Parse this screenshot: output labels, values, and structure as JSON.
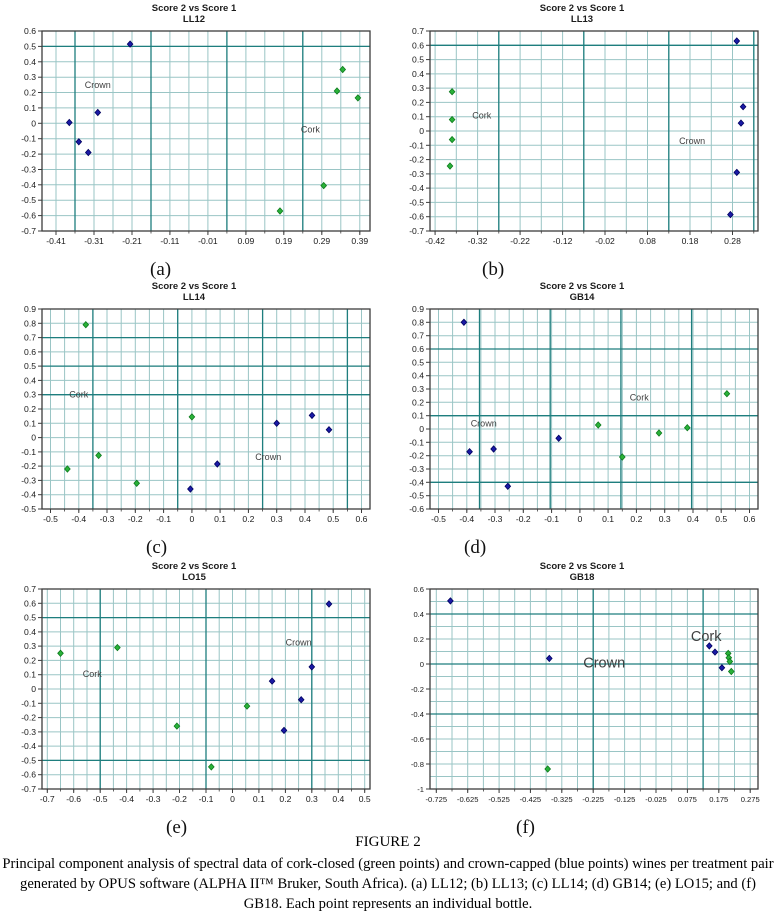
{
  "figure": {
    "label": "FIGURE 2",
    "caption": "Principal component analysis of spectral data of cork-closed (green points) and crown-capped (blue points) wines per treatment pair generated by OPUS software (ALPHA II™ Bruker, South Africa). (a) LL12; (b) LL13; (c) LL14; (d) GB14; (e) LO15; and (f) GB18. Each point represents an individual bottle.",
    "colors": {
      "cork_green": "#2ab239",
      "cork_edge": "#0e7a1e",
      "crown_blue": "#1a1aa6",
      "crown_edge": "#00005e",
      "grid_minor": "#9ac5c5",
      "grid_major": "#1e7e7e",
      "axis": "#3c3c3c",
      "tick_text": "#1a1a1a",
      "annotation": "#3f3f3f"
    }
  },
  "chart_data": [
    {
      "type": "scatter",
      "panel_label": "(a)",
      "title": "Score 2 vs Score 1",
      "subtitle": "LL12",
      "x_ticks": [
        "-0.41",
        "-0.31",
        "-0.21",
        "-0.11",
        "-0.01",
        "0.09",
        "0.19",
        "0.29",
        "0.39"
      ],
      "y_ticks": [
        "0.6",
        "0.5",
        "0.4",
        "0.3",
        "0.2",
        "0.1",
        "0",
        "-0.1",
        "-0.2",
        "-0.3",
        "-0.4",
        "-0.5",
        "-0.6",
        "-0.7"
      ],
      "xlim": [
        -0.447,
        0.417
      ],
      "ylim": [
        -0.7,
        0.6
      ],
      "grid": {
        "minor_x": 0.05,
        "minor_y": 0.1,
        "major_x": [
          -0.36,
          -0.16,
          0.04,
          0.24
        ],
        "major_y": [
          0.5
        ]
      },
      "series": [
        {
          "name": "Crown",
          "points": [
            [
              -0.375,
              0.005
            ],
            [
              -0.35,
              -0.12
            ],
            [
              -0.325,
              -0.19
            ],
            [
              -0.3,
              0.07
            ],
            [
              -0.215,
              0.515
            ]
          ]
        },
        {
          "name": "Cork",
          "points": [
            [
              0.18,
              -0.57
            ],
            [
              0.295,
              -0.405
            ],
            [
              0.33,
              0.21
            ],
            [
              0.345,
              0.35
            ],
            [
              0.385,
              0.165
            ]
          ]
        }
      ],
      "annotations": [
        {
          "text": "Crown",
          "x": -0.3,
          "y": 0.25,
          "size": "small"
        },
        {
          "text": "Cork",
          "x": 0.26,
          "y": -0.04,
          "size": "small"
        }
      ]
    },
    {
      "type": "scatter",
      "panel_label": "(b)",
      "title": "Score 2 vs Score 1",
      "subtitle": "LL13",
      "x_ticks": [
        "-0.42",
        "-0.32",
        "-0.22",
        "-0.12",
        "-0.02",
        "0.08",
        "0.18",
        "0.28"
      ],
      "y_ticks": [
        "0.7",
        "0.6",
        "0.5",
        "0.4",
        "0.3",
        "0.2",
        "0.1",
        "0",
        "-0.1",
        "-0.2",
        "-0.3",
        "-0.4",
        "-0.5",
        "-0.6",
        "-0.7"
      ],
      "xlim": [
        -0.432,
        0.34
      ],
      "ylim": [
        -0.7,
        0.7
      ],
      "grid": {
        "minor_x": 0.05,
        "minor_y": 0.1,
        "major_x": [
          -0.27,
          -0.07,
          0.13,
          0.33
        ],
        "major_y": [
          0.6
        ]
      },
      "series": [
        {
          "name": "Cork",
          "points": [
            [
              -0.38,
              0.275
            ],
            [
              -0.38,
              0.08
            ],
            [
              -0.38,
              -0.06
            ],
            [
              -0.385,
              -0.245
            ]
          ]
        },
        {
          "name": "Crown",
          "points": [
            [
              0.29,
              0.63
            ],
            [
              0.305,
              0.17
            ],
            [
              0.3,
              0.055
            ],
            [
              0.29,
              -0.29
            ],
            [
              0.275,
              -0.585
            ]
          ]
        }
      ],
      "annotations": [
        {
          "text": "Cork",
          "x": -0.31,
          "y": 0.11,
          "size": "small"
        },
        {
          "text": "Crown",
          "x": 0.185,
          "y": -0.07,
          "size": "small"
        }
      ]
    },
    {
      "type": "scatter",
      "panel_label": "(c)",
      "title": "Score 2 vs Score 1",
      "subtitle": "LL14",
      "x_ticks": [
        "-0.5",
        "-0.4",
        "-0.3",
        "-0.2",
        "-0.1",
        "0",
        "0.1",
        "0.2",
        "0.3",
        "0.4",
        "0.5",
        "0.6"
      ],
      "y_ticks": [
        "0.9",
        "0.8",
        "0.7",
        "0.6",
        "0.5",
        "0.4",
        "0.3",
        "0.2",
        "0.1",
        "0",
        "-0.1",
        "-0.2",
        "-0.3",
        "-0.4",
        "-0.5"
      ],
      "xlim": [
        -0.53,
        0.63
      ],
      "ylim": [
        -0.5,
        0.9
      ],
      "grid": {
        "minor_x": 0.05,
        "minor_y": 0.1,
        "major_x": [
          -0.35,
          -0.05,
          0.25,
          0.55
        ],
        "major_y": [
          0.7,
          0.5,
          0.3
        ]
      },
      "series": [
        {
          "name": "Cork",
          "points": [
            [
              -0.44,
              -0.22
            ],
            [
              -0.375,
              0.79
            ],
            [
              -0.33,
              -0.125
            ],
            [
              -0.195,
              -0.32
            ],
            [
              0.0,
              0.145
            ]
          ]
        },
        {
          "name": "Crown",
          "points": [
            [
              -0.005,
              -0.36
            ],
            [
              0.09,
              -0.185
            ],
            [
              0.3,
              0.1
            ],
            [
              0.425,
              0.155
            ],
            [
              0.485,
              0.055
            ]
          ]
        }
      ],
      "annotations": [
        {
          "text": "Cork",
          "x": -0.4,
          "y": 0.3,
          "size": "small"
        },
        {
          "text": "Crown",
          "x": 0.27,
          "y": -0.135,
          "size": "small"
        }
      ]
    },
    {
      "type": "scatter",
      "panel_label": "(d)",
      "title": "Score 2 vs Score 1",
      "subtitle": "GB14",
      "x_ticks": [
        "-0.5",
        "-0.4",
        "-0.3",
        "-0.2",
        "-0.1",
        "0",
        "0.1",
        "0.2",
        "0.3",
        "0.4",
        "0.5",
        "0.6"
      ],
      "y_ticks": [
        "0.9",
        "0.8",
        "0.7",
        "0.6",
        "0.5",
        "0.4",
        "0.3",
        "0.2",
        "0.1",
        "0",
        "-0.1",
        "-0.2",
        "-0.3",
        "-0.4",
        "-0.5",
        "-0.6"
      ],
      "xlim": [
        -0.53,
        0.63
      ],
      "ylim": [
        -0.6,
        0.9
      ],
      "grid": {
        "minor_x": 0.05,
        "minor_y": 0.1,
        "major_x": [
          -0.355,
          -0.105,
          0.145,
          0.395
        ],
        "major_y": [
          0.6,
          0.1,
          -0.4
        ]
      },
      "series": [
        {
          "name": "Crown",
          "points": [
            [
              -0.41,
              0.8
            ],
            [
              -0.39,
              -0.17
            ],
            [
              -0.305,
              -0.15
            ],
            [
              -0.255,
              -0.43
            ],
            [
              -0.075,
              -0.07
            ]
          ]
        },
        {
          "name": "Cork",
          "points": [
            [
              0.065,
              0.03
            ],
            [
              0.15,
              -0.21
            ],
            [
              0.28,
              -0.03
            ],
            [
              0.38,
              0.01
            ],
            [
              0.52,
              0.265
            ]
          ]
        }
      ],
      "annotations": [
        {
          "text": "Crown",
          "x": -0.34,
          "y": 0.04,
          "size": "small"
        },
        {
          "text": "Cork",
          "x": 0.21,
          "y": 0.235,
          "size": "small"
        }
      ]
    },
    {
      "type": "scatter",
      "panel_label": "(e)",
      "title": "Score 2 vs Score 1",
      "subtitle": "LO15",
      "x_ticks": [
        "-0.7",
        "-0.6",
        "-0.5",
        "-0.4",
        "-0.3",
        "-0.2",
        "-0.1",
        "0",
        "0.1",
        "0.2",
        "0.3",
        "0.4",
        "0.5"
      ],
      "y_ticks": [
        "0.7",
        "0.6",
        "0.5",
        "0.4",
        "0.3",
        "0.2",
        "0.1",
        "0",
        "-0.1",
        "-0.2",
        "-0.3",
        "-0.4",
        "-0.5",
        "-0.6",
        "-0.7"
      ],
      "xlim": [
        -0.72,
        0.52
      ],
      "ylim": [
        -0.7,
        0.7
      ],
      "grid": {
        "minor_x": 0.05,
        "minor_y": 0.1,
        "major_x": [
          -0.5,
          -0.1,
          0.3
        ],
        "major_y": [
          0.5,
          -0.5
        ]
      },
      "series": [
        {
          "name": "Cork",
          "points": [
            [
              -0.65,
              0.25
            ],
            [
              -0.435,
              0.29
            ],
            [
              -0.21,
              -0.26
            ],
            [
              -0.08,
              -0.545
            ],
            [
              0.055,
              -0.12
            ]
          ]
        },
        {
          "name": "Crown",
          "points": [
            [
              0.15,
              0.055
            ],
            [
              0.195,
              -0.29
            ],
            [
              0.26,
              -0.075
            ],
            [
              0.3,
              0.155
            ],
            [
              0.365,
              0.595
            ]
          ]
        }
      ],
      "annotations": [
        {
          "text": "Cork",
          "x": -0.53,
          "y": 0.105,
          "size": "small"
        },
        {
          "text": "Crown",
          "x": 0.25,
          "y": 0.325,
          "size": "small"
        }
      ]
    },
    {
      "type": "scatter",
      "panel_label": "(f)",
      "title": "Score 2 vs Score 1",
      "subtitle": "GB18",
      "x_ticks": [
        "-0.725",
        "-0.625",
        "-0.525",
        "-0.425",
        "-0.325",
        "-0.225",
        "-0.125",
        "-0.025",
        "0.075",
        "0.175",
        "0.275"
      ],
      "y_ticks": [
        "0.6",
        "0.4",
        "0.2",
        "0",
        "-0.2",
        "-0.4",
        "-0.6",
        "-0.8",
        "-1"
      ],
      "xlim": [
        -0.745,
        0.3
      ],
      "ylim": [
        -1.0,
        0.6
      ],
      "grid": {
        "minor_x": 0.05,
        "minor_y": 0.1,
        "major_x": [
          -0.225,
          0.125
        ],
        "major_y": [
          0.4,
          0.0,
          -0.4
        ]
      },
      "series": [
        {
          "name": "Crown",
          "points": [
            [
              -0.68,
              0.505
            ],
            [
              -0.365,
              0.045
            ],
            [
              0.145,
              0.145
            ],
            [
              0.163,
              0.095
            ],
            [
              0.185,
              -0.03
            ]
          ]
        },
        {
          "name": "Cork",
          "points": [
            [
              -0.37,
              -0.84
            ],
            [
              0.205,
              0.085
            ],
            [
              0.207,
              0.05
            ],
            [
              0.21,
              0.02
            ],
            [
              0.215,
              -0.06
            ]
          ]
        }
      ],
      "annotations": [
        {
          "text": "Crown",
          "x": -0.19,
          "y": -0.005,
          "size": "large"
        },
        {
          "text": "Cork",
          "x": 0.135,
          "y": 0.21,
          "size": "large"
        }
      ]
    }
  ]
}
